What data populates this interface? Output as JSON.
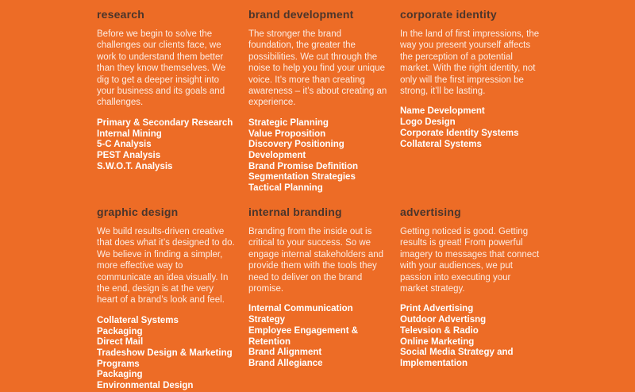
{
  "colors": {
    "background": "#ED6C26",
    "heading": "#4B352B",
    "body_text": "rgba(255,255,255,0.87)",
    "item_text": "#FFFFFF"
  },
  "sections": [
    {
      "title": "research",
      "description": "Before we begin to solve the challenges our clients face, we work to understand them better than they know themselves. We dig to get a deeper insight into your business and its goals and challenges.",
      "items": [
        "Primary & Secondary Research",
        "Internal Mining",
        "5-C Analysis",
        "PEST Analysis",
        "S.W.O.T. Analysis"
      ]
    },
    {
      "title": "brand development",
      "description": "The stronger the brand foundation, the greater the possibilities. We cut through the noise to help you find your unique voice. It’s more than creating awareness – it’s about creating an experience.",
      "items": [
        "Strategic Planning",
        "Value Proposition",
        "Discovery Positioning Development",
        "Brand Promise Definition",
        "Segmentation Strategies",
        "Tactical Planning"
      ]
    },
    {
      "title": "corporate identity",
      "description": "In the land of first impressions, the way you present yourself affects the perception of a potential market. With the right identity, not only will the first impression be strong, it’ll be lasting.",
      "items": [
        "Name Development",
        "Logo Design",
        "Corporate Identity Systems",
        "Collateral Systems"
      ]
    },
    {
      "title": "graphic design",
      "description": "We build results-driven creative that does what it’s designed to do. We believe in finding a simpler, more effective way to communicate an idea visually. In the end, design is at the very heart of a brand’s look and feel.",
      "items": [
        "Collateral Systems",
        "Packaging",
        "Direct Mail",
        "Tradeshow Design & Marketing Programs",
        "Packaging",
        "Environmental Design"
      ]
    },
    {
      "title": "internal branding",
      "description": "Branding from the inside out is critical to your success. So we engage internal stakeholders and provide them with the tools they need to deliver on the brand promise.",
      "items": [
        "Internal Communication Strategy",
        "Employee Engagement & Retention",
        "Brand Alignment",
        "Brand Allegiance"
      ]
    },
    {
      "title": "advertising",
      "description": "Getting noticed is good. Getting results is great! From powerful imagery to messages that connect with your audiences, we put passion into executing your market strategy.",
      "items": [
        "Print Advertising",
        "Outdoor Advertisng",
        "Televsion & Radio",
        "Online Marketing",
        "Social Media Strategy and Implementation"
      ]
    }
  ]
}
